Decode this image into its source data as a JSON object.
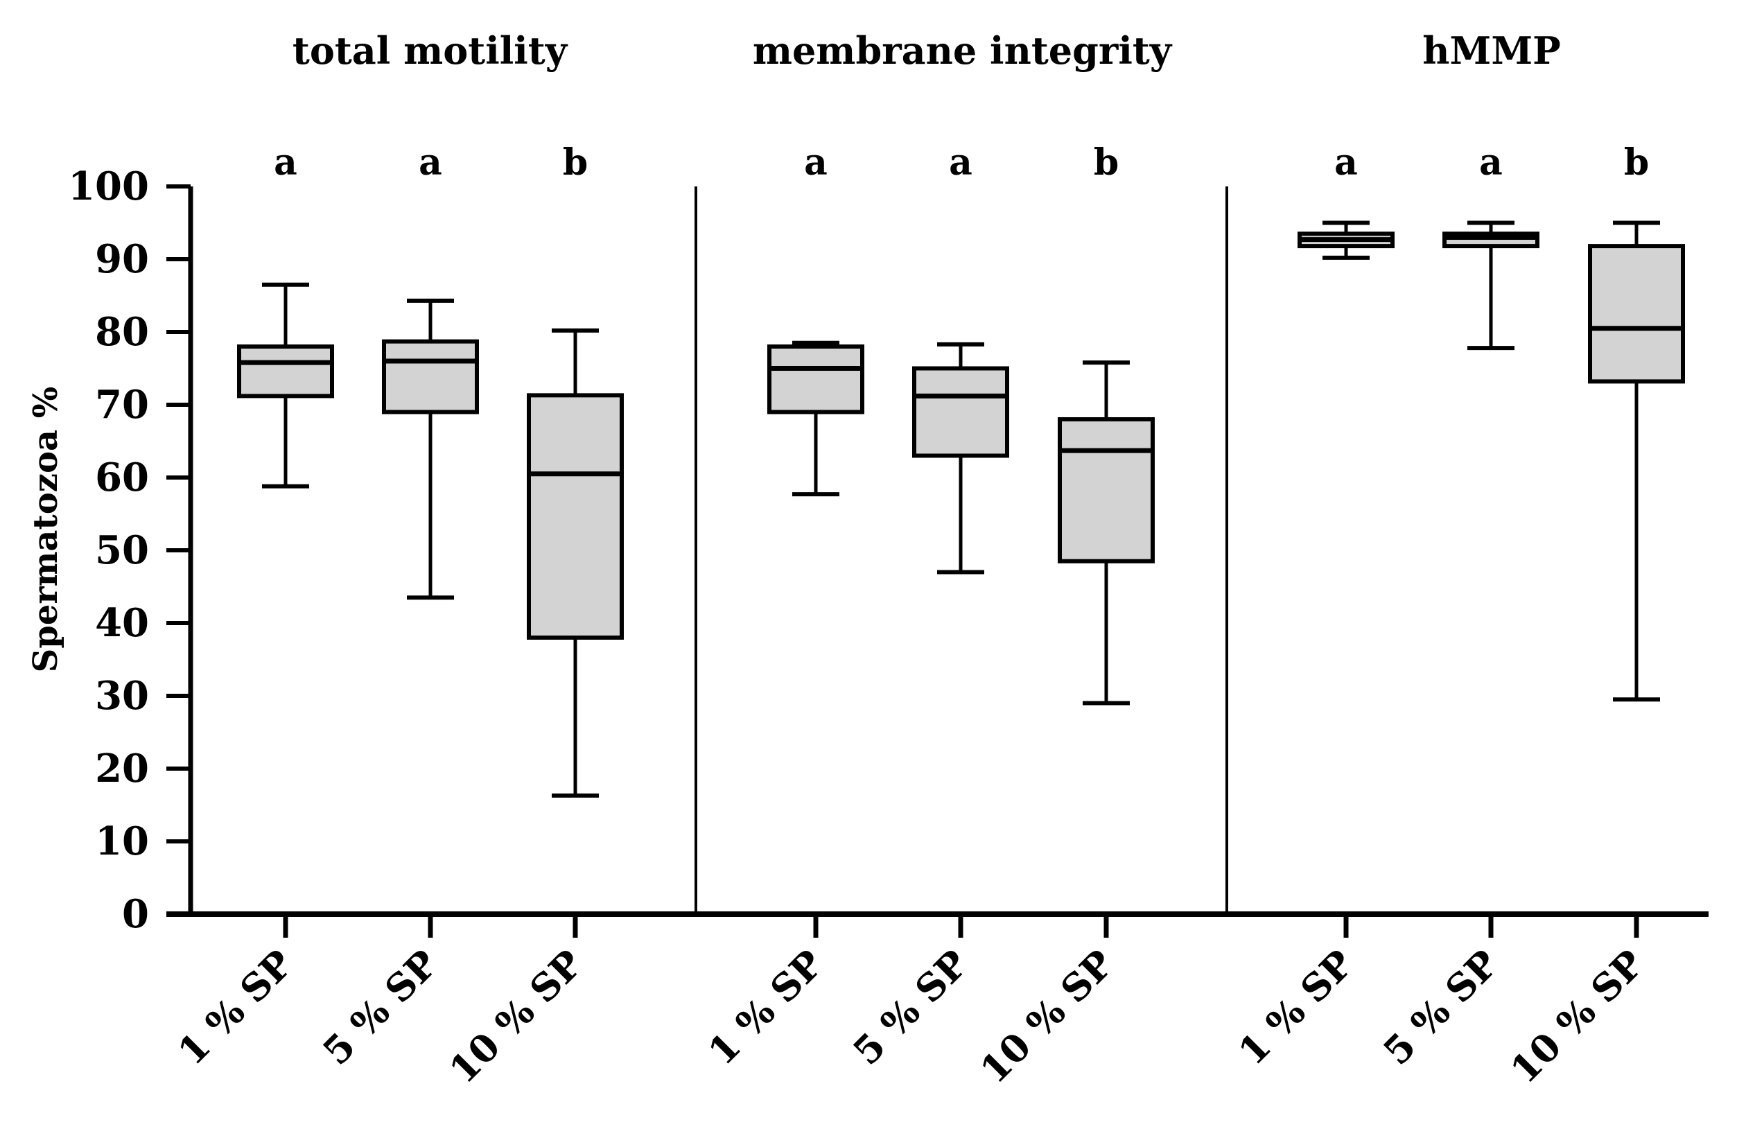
{
  "chart_data": {
    "type": "boxplot",
    "ylabel": "Spermatozoa %",
    "ylim": [
      0,
      100
    ],
    "yticks": [
      "0",
      "10",
      "20",
      "30",
      "40",
      "50",
      "60",
      "70",
      "80",
      "90",
      "100"
    ],
    "categories": [
      "1 % SP",
      "5 % SP",
      "10 % SP"
    ],
    "panels": [
      {
        "title": "total motility",
        "groups": [
          {
            "category": "1 % SP",
            "min": 58.8,
            "q1": 71.2,
            "median": 75.8,
            "q3": 78.0,
            "max": 86.5,
            "letter": "a"
          },
          {
            "category": "5 % SP",
            "min": 43.5,
            "q1": 69.0,
            "median": 76.0,
            "q3": 78.7,
            "max": 84.3,
            "letter": "a"
          },
          {
            "category": "10 % SP",
            "min": 16.3,
            "q1": 38.0,
            "median": 60.5,
            "q3": 71.3,
            "max": 80.2,
            "letter": "b"
          }
        ]
      },
      {
        "title": "membrane integrity",
        "groups": [
          {
            "category": "1 % SP",
            "min": 57.7,
            "q1": 69.0,
            "median": 75.0,
            "q3": 78.0,
            "max": 78.5,
            "letter": "a"
          },
          {
            "category": "5 % SP",
            "min": 47.0,
            "q1": 63.0,
            "median": 71.2,
            "q3": 75.0,
            "max": 78.3,
            "letter": "a"
          },
          {
            "category": "10 % SP",
            "min": 29.0,
            "q1": 48.5,
            "median": 63.7,
            "q3": 68.0,
            "max": 75.8,
            "letter": "b"
          }
        ]
      },
      {
        "title": "hMMP",
        "groups": [
          {
            "category": "1 % SP",
            "min": 90.2,
            "q1": 91.8,
            "median": 92.7,
            "q3": 93.5,
            "max": 95.0,
            "letter": "a"
          },
          {
            "category": "5 % SP",
            "min": 77.8,
            "q1": 91.8,
            "median": 93.0,
            "q3": 93.5,
            "max": 95.0,
            "letter": "a"
          },
          {
            "category": "10 % SP",
            "min": 29.5,
            "q1": 73.2,
            "median": 80.5,
            "q3": 91.8,
            "max": 95.0,
            "letter": "b"
          }
        ]
      }
    ],
    "colors": {
      "box_fill": "#d3d3d3",
      "stroke": "#000000"
    }
  }
}
